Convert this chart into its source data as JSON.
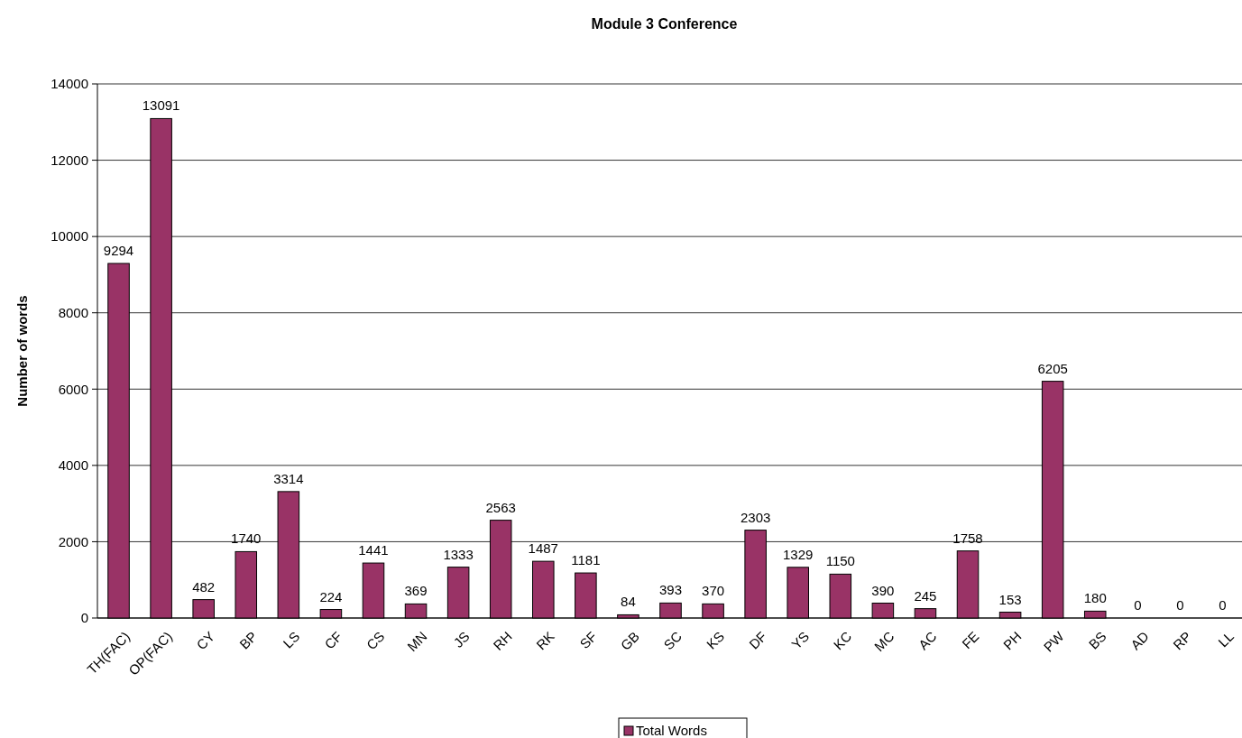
{
  "chart_data": {
    "type": "bar",
    "title": "Module 3 Conference",
    "ylabel": "Number of words",
    "categories": [
      "TH(FAC)",
      "OP(FAC)",
      "CY",
      "BP",
      "LS",
      "CF",
      "CS",
      "MN",
      "JS",
      "RH",
      "RK",
      "SF",
      "GB",
      "SC",
      "KS",
      "DF",
      "YS",
      "KC",
      "MC",
      "AC",
      "FE",
      "PH",
      "PW",
      "BS",
      "AD",
      "RP",
      "LL"
    ],
    "series": [
      {
        "name": "Total Words",
        "color": "#993366",
        "values": [
          9294,
          13091,
          482,
          1740,
          3314,
          224,
          1441,
          369,
          1333,
          2563,
          1487,
          1181,
          84,
          393,
          370,
          2303,
          1329,
          1150,
          390,
          245,
          1758,
          153,
          6205,
          180,
          0,
          0,
          0
        ]
      }
    ],
    "ylim": [
      0,
      14000
    ],
    "yticks": [
      0,
      2000,
      4000,
      6000,
      8000,
      10000,
      12000,
      14000
    ],
    "grid": "y",
    "legend": "bottom",
    "data_labels": true
  }
}
